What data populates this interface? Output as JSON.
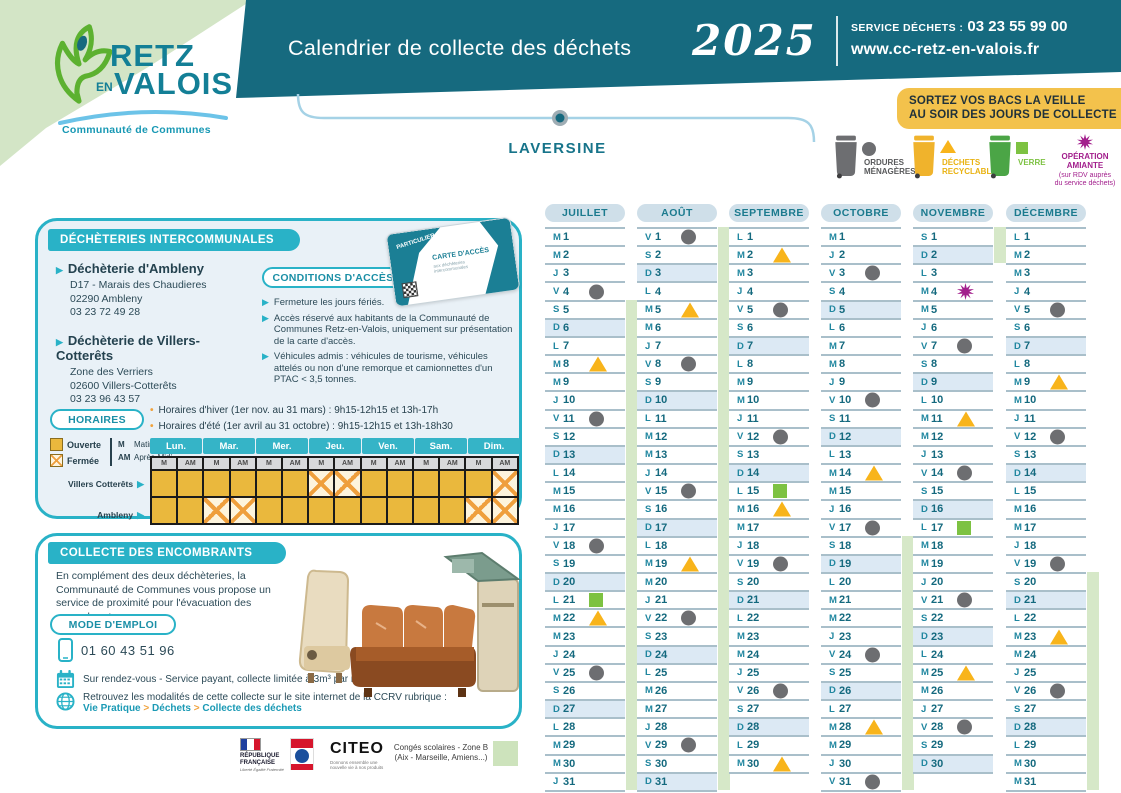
{
  "logo": {
    "line1": "RETZ",
    "en": "EN",
    "line2": "VALOIS",
    "subtitle": "Communauté de Communes"
  },
  "header": {
    "title": "Calendrier de collecte des déchets",
    "year": "2025",
    "service_label": "SERVICE DÉCHETS :",
    "service_phone": "03 23 55 99 00",
    "website": "www.cc-retz-en-valois.fr"
  },
  "notice": {
    "line1": "SORTEZ VOS BACS LA VEILLE",
    "line2": "AU SOIR DES JOURS DE COLLECTE"
  },
  "commune": {
    "name": "LAVERSINE"
  },
  "waste_legend": {
    "om": {
      "line1": "ORDURES",
      "line2": "MÉNAGÈRES"
    },
    "rec": {
      "line1": "DÉCHETS",
      "line2": "RECYCLABLES"
    },
    "verre": {
      "line1": "VERRE"
    },
    "amiante": {
      "line1": "OPÉRATION",
      "line2": "AMIANTE",
      "note1": "(sur RDV auprès",
      "note2": "du service déchets)"
    }
  },
  "dechetteries": {
    "title": "DÉCHÈTERIES INTERCOMMUNALES",
    "sites": [
      {
        "name": "Déchèterie d'Ambleny",
        "line1": "D17 - Marais des Chaudieres",
        "line2": "02290 Ambleny",
        "line3": "03 23 72 49 28"
      },
      {
        "name": "Déchèterie de Villers-Cotterêts",
        "line1": "Zone des Verriers",
        "line2": "02600 Villers-Cotterêts",
        "line3": "03 23 96 43 57"
      }
    ],
    "conditions_title": "CONDITIONS D'ACCÈS",
    "conditions": [
      "Fermeture les jours fériés.",
      "Accès réservé aux habitants de la Communauté de Communes Retz-en-Valois, uniquement sur présentation de la carte d'accès.",
      "Véhicules admis : véhicules de tourisme, véhicules attelés ou non d'une remorque et camionnettes d'un PTAC < 3,5 tonnes."
    ],
    "card": {
      "top_label": "PARTICULIER",
      "title": "CARTE D'ACCÈS",
      "sub": "aux déchèteries intercommunales"
    },
    "horaires_title": "HORAIRES",
    "horaires_notes": [
      "Horaires d'hiver (1er nov. au 31 mars) : 9h15-12h15 et 13h-17h",
      "Horaires d'été (1er avril au 31 octobre) : 9h15-12h15 et 13h-18h30"
    ],
    "schedule": {
      "legend": {
        "open": "Ouverte",
        "closed": "Fermée",
        "m": "M",
        "m_label": "Matin",
        "am": "AM",
        "am_label": "Après-Midi"
      },
      "days": [
        "Lun.",
        "Mar.",
        "Mer.",
        "Jeu.",
        "Ven.",
        "Sam.",
        "Dim."
      ],
      "sub": [
        "M",
        "AM"
      ],
      "rows": [
        {
          "label": "Villers Cotterêts",
          "cells": [
            1,
            1,
            1,
            1,
            1,
            1,
            0,
            0,
            1,
            1,
            1,
            1,
            1,
            0
          ]
        },
        {
          "label": "Ambleny",
          "cells": [
            1,
            1,
            0,
            0,
            1,
            1,
            1,
            1,
            1,
            1,
            1,
            1,
            0,
            0
          ]
        }
      ]
    }
  },
  "encombrants": {
    "title": "COLLECTE DES ENCOMBRANTS",
    "intro": "En complément des deux déchèteries, la Communauté de Communes vous propose un service de proximité pour l'évacuation des encombrants.",
    "mode_demploi": "MODE D'EMPLOI",
    "phone": "01 60 43 51 96",
    "appointment": "Sur rendez-vous - Service payant, collecte limitée à 3m³ par rendez-vous",
    "website_info": "Retrouvez les modalités de cette collecte sur le site internet de la CCRV rubrique :",
    "breadcrumb": [
      "Vie Pratique",
      "Déchets",
      "Collecte des déchets"
    ],
    "breadcrumb_sep": ">"
  },
  "footer": {
    "rf_line1": "RÉPUBLIQUE",
    "rf_line2": "FRANÇAISE",
    "rf_motto": "Liberté Égalité Fraternité",
    "citeo": "CITEO",
    "citeo_tagline": "Donnons ensemble une nouvelle vie à nos produits",
    "holidays_line1": "Congés scolaires - Zone B",
    "holidays_line2": "(Aix - Marseille, Amiens...)"
  },
  "colors": {
    "teal_dark": "#166a7f",
    "teal": "#29b2c7",
    "yellow_banner": "#f3c24c",
    "om_gray": "#6d6e71",
    "rec_yellow": "#f8b41b",
    "verre_green": "#7dc242",
    "amiante_purple": "#a21e8c",
    "holiday_green": "#d6e8c8",
    "sunday_blue": "#dce9f4"
  },
  "calendar": {
    "marker_types": {
      "om": "ordures-menageres",
      "rec": "dechets-recyclables",
      "verre": "verre",
      "amiante": "operation-amiante"
    },
    "months": [
      {
        "name": "JUILLET",
        "days": [
          [
            1,
            "M"
          ],
          [
            2,
            "M"
          ],
          [
            3,
            "J"
          ],
          [
            4,
            "V",
            "om"
          ],
          [
            5,
            "S"
          ],
          [
            6,
            "D"
          ],
          [
            7,
            "L"
          ],
          [
            8,
            "M",
            "rec"
          ],
          [
            9,
            "M"
          ],
          [
            10,
            "J"
          ],
          [
            11,
            "V",
            "om"
          ],
          [
            12,
            "S"
          ],
          [
            13,
            "D"
          ],
          [
            14,
            "L"
          ],
          [
            15,
            "M"
          ],
          [
            16,
            "M"
          ],
          [
            17,
            "J"
          ],
          [
            18,
            "V",
            "om"
          ],
          [
            19,
            "S"
          ],
          [
            20,
            "D"
          ],
          [
            21,
            "L",
            "verre"
          ],
          [
            22,
            "M",
            "rec"
          ],
          [
            23,
            "M"
          ],
          [
            24,
            "J"
          ],
          [
            25,
            "V",
            "om"
          ],
          [
            26,
            "S"
          ],
          [
            27,
            "D"
          ],
          [
            28,
            "L"
          ],
          [
            29,
            "M"
          ],
          [
            30,
            "M"
          ],
          [
            31,
            "J"
          ]
        ]
      },
      {
        "name": "AOÛT",
        "days": [
          [
            1,
            "V",
            "om"
          ],
          [
            2,
            "S"
          ],
          [
            3,
            "D"
          ],
          [
            4,
            "L"
          ],
          [
            5,
            "M",
            "rec"
          ],
          [
            6,
            "M"
          ],
          [
            7,
            "J"
          ],
          [
            8,
            "V",
            "om"
          ],
          [
            9,
            "S"
          ],
          [
            10,
            "D"
          ],
          [
            11,
            "L"
          ],
          [
            12,
            "M"
          ],
          [
            13,
            "M"
          ],
          [
            14,
            "J"
          ],
          [
            15,
            "V",
            "om"
          ],
          [
            16,
            "S"
          ],
          [
            17,
            "D"
          ],
          [
            18,
            "L"
          ],
          [
            19,
            "M",
            "rec"
          ],
          [
            20,
            "M"
          ],
          [
            21,
            "J"
          ],
          [
            22,
            "V",
            "om"
          ],
          [
            23,
            "S"
          ],
          [
            24,
            "D"
          ],
          [
            25,
            "L"
          ],
          [
            26,
            "M"
          ],
          [
            27,
            "M"
          ],
          [
            28,
            "J"
          ],
          [
            29,
            "V",
            "om"
          ],
          [
            30,
            "S"
          ],
          [
            31,
            "D"
          ]
        ]
      },
      {
        "name": "SEPTEMBRE",
        "days": [
          [
            1,
            "L"
          ],
          [
            2,
            "M",
            "rec"
          ],
          [
            3,
            "M"
          ],
          [
            4,
            "J"
          ],
          [
            5,
            "V",
            "om"
          ],
          [
            6,
            "S"
          ],
          [
            7,
            "D"
          ],
          [
            8,
            "L"
          ],
          [
            9,
            "M"
          ],
          [
            10,
            "M"
          ],
          [
            11,
            "J"
          ],
          [
            12,
            "V",
            "om"
          ],
          [
            13,
            "S"
          ],
          [
            14,
            "D"
          ],
          [
            15,
            "L",
            "verre"
          ],
          [
            16,
            "M",
            "rec"
          ],
          [
            17,
            "M"
          ],
          [
            18,
            "J"
          ],
          [
            19,
            "V",
            "om"
          ],
          [
            20,
            "S"
          ],
          [
            21,
            "D"
          ],
          [
            22,
            "L"
          ],
          [
            23,
            "M"
          ],
          [
            24,
            "M"
          ],
          [
            25,
            "J"
          ],
          [
            26,
            "V",
            "om"
          ],
          [
            27,
            "S"
          ],
          [
            28,
            "D"
          ],
          [
            29,
            "L"
          ],
          [
            30,
            "M",
            "rec"
          ]
        ]
      },
      {
        "name": "OCTOBRE",
        "days": [
          [
            1,
            "M"
          ],
          [
            2,
            "J"
          ],
          [
            3,
            "V",
            "om"
          ],
          [
            4,
            "S"
          ],
          [
            5,
            "D"
          ],
          [
            6,
            "L"
          ],
          [
            7,
            "M"
          ],
          [
            8,
            "M"
          ],
          [
            9,
            "J"
          ],
          [
            10,
            "V",
            "om"
          ],
          [
            11,
            "S"
          ],
          [
            12,
            "D"
          ],
          [
            13,
            "L"
          ],
          [
            14,
            "M",
            "rec"
          ],
          [
            15,
            "M"
          ],
          [
            16,
            "J"
          ],
          [
            17,
            "V",
            "om"
          ],
          [
            18,
            "S"
          ],
          [
            19,
            "D"
          ],
          [
            20,
            "L"
          ],
          [
            21,
            "M"
          ],
          [
            22,
            "M"
          ],
          [
            23,
            "J"
          ],
          [
            24,
            "V",
            "om"
          ],
          [
            25,
            "S"
          ],
          [
            26,
            "D"
          ],
          [
            27,
            "L"
          ],
          [
            28,
            "M",
            "rec"
          ],
          [
            29,
            "M"
          ],
          [
            30,
            "J"
          ],
          [
            31,
            "V",
            "om"
          ]
        ]
      },
      {
        "name": "NOVEMBRE",
        "days": [
          [
            1,
            "S"
          ],
          [
            2,
            "D"
          ],
          [
            3,
            "L"
          ],
          [
            4,
            "M",
            "amiante"
          ],
          [
            5,
            "M"
          ],
          [
            6,
            "J"
          ],
          [
            7,
            "V",
            "om"
          ],
          [
            8,
            "S"
          ],
          [
            9,
            "D"
          ],
          [
            10,
            "L"
          ],
          [
            11,
            "M",
            "rec"
          ],
          [
            12,
            "M"
          ],
          [
            13,
            "J"
          ],
          [
            14,
            "V",
            "om"
          ],
          [
            15,
            "S"
          ],
          [
            16,
            "D"
          ],
          [
            17,
            "L",
            "verre"
          ],
          [
            18,
            "M"
          ],
          [
            19,
            "M"
          ],
          [
            20,
            "J"
          ],
          [
            21,
            "V",
            "om"
          ],
          [
            22,
            "S"
          ],
          [
            23,
            "D"
          ],
          [
            24,
            "L"
          ],
          [
            25,
            "M",
            "rec"
          ],
          [
            26,
            "M"
          ],
          [
            27,
            "J"
          ],
          [
            28,
            "V",
            "om"
          ],
          [
            29,
            "S"
          ],
          [
            30,
            "D"
          ]
        ]
      },
      {
        "name": "DÉCEMBRE",
        "days": [
          [
            1,
            "L"
          ],
          [
            2,
            "M"
          ],
          [
            3,
            "M"
          ],
          [
            4,
            "J"
          ],
          [
            5,
            "V",
            "om"
          ],
          [
            6,
            "S"
          ],
          [
            7,
            "D"
          ],
          [
            8,
            "L"
          ],
          [
            9,
            "M",
            "rec"
          ],
          [
            10,
            "M"
          ],
          [
            11,
            "J"
          ],
          [
            12,
            "V",
            "om"
          ],
          [
            13,
            "S"
          ],
          [
            14,
            "D"
          ],
          [
            15,
            "L"
          ],
          [
            16,
            "M"
          ],
          [
            17,
            "M"
          ],
          [
            18,
            "J"
          ],
          [
            19,
            "V",
            "om"
          ],
          [
            20,
            "S"
          ],
          [
            21,
            "D"
          ],
          [
            22,
            "L"
          ],
          [
            23,
            "M",
            "rec"
          ],
          [
            24,
            "M"
          ],
          [
            25,
            "J"
          ],
          [
            26,
            "V",
            "om"
          ],
          [
            27,
            "S"
          ],
          [
            28,
            "D"
          ],
          [
            29,
            "L"
          ],
          [
            30,
            "M"
          ],
          [
            31,
            "M"
          ]
        ]
      }
    ],
    "holiday_bands": [
      {
        "month": 0,
        "from": 5,
        "to": 31
      },
      {
        "month": 1,
        "from": 1,
        "to": 31
      },
      {
        "month": 3,
        "from": 18,
        "to": 31
      },
      {
        "month": 4,
        "from": 1,
        "to": 2
      },
      {
        "month": 5,
        "from": 20,
        "to": 31
      }
    ]
  }
}
